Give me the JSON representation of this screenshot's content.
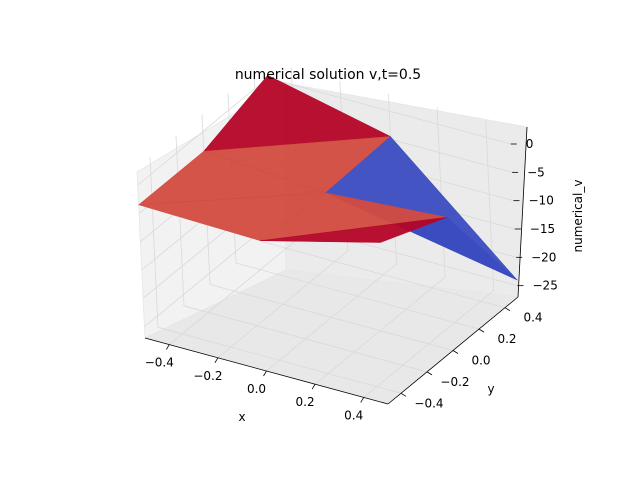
{
  "chart_data": {
    "type": "surface3d",
    "title": "numerical solution v,t=0.5",
    "xlabel": "x",
    "ylabel": "y",
    "zlabel": "numerical_v",
    "x_ticks": [
      "−0.4",
      "−0.2",
      "0.0",
      "0.2",
      "0.4"
    ],
    "y_ticks": [
      "−0.4",
      "−0.2",
      "0.0",
      "0.2",
      "0.4"
    ],
    "z_ticks": [
      "0",
      "−5",
      "−10",
      "−15",
      "−20",
      "−25"
    ],
    "xlim": [
      -0.5,
      0.5
    ],
    "ylim": [
      -0.5,
      0.5
    ],
    "zlim": [
      -27,
      3
    ],
    "grid": true,
    "colormap": "coolwarm",
    "colors": {
      "high": "#b40426",
      "mid_high": "#d24b40",
      "low": "#3b4cc0"
    },
    "x": [
      -0.5,
      0.0,
      0.5
    ],
    "y": [
      -0.5,
      0.0,
      0.5
    ],
    "z": [
      [
        -3.5,
        -4.0,
        1.5
      ],
      [
        -3.5,
        -5.0,
        -3.5
      ],
      [
        0.5,
        -4.5,
        -24.0
      ]
    ]
  }
}
